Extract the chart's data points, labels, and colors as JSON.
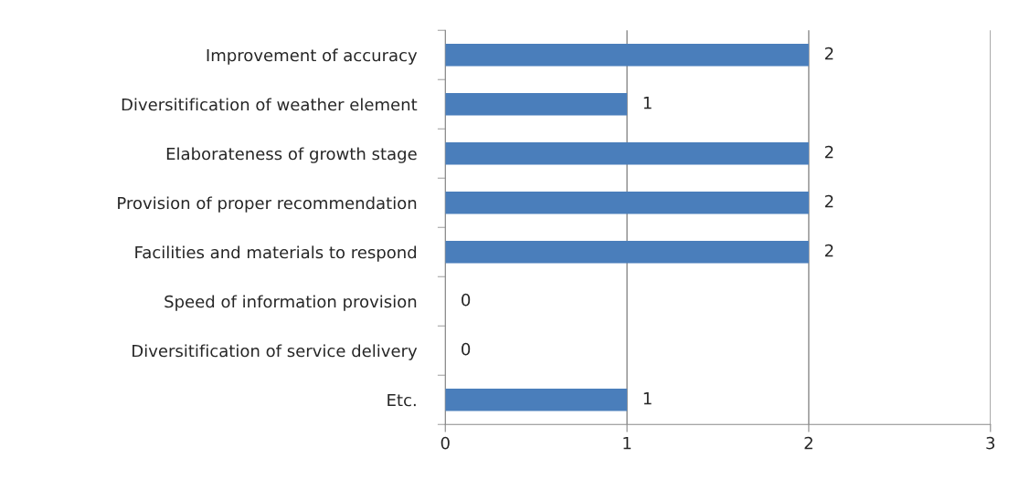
{
  "chart_data": {
    "type": "bar",
    "orientation": "horizontal",
    "categories": [
      "Improvement of accuracy",
      "Diversitification of weather element",
      "Elaborateness of growth stage",
      "Provision of proper recommendation",
      "Facilities and materials to respond",
      "Speed of information provision",
      "Diversitification of service delivery",
      "Etc."
    ],
    "values": [
      2,
      1,
      2,
      2,
      2,
      0,
      0,
      1
    ],
    "color": "#4a7ebb",
    "xlim": [
      0,
      3
    ],
    "xticks": [
      0,
      1,
      2,
      3
    ],
    "grid": "x",
    "data_labels": true
  }
}
